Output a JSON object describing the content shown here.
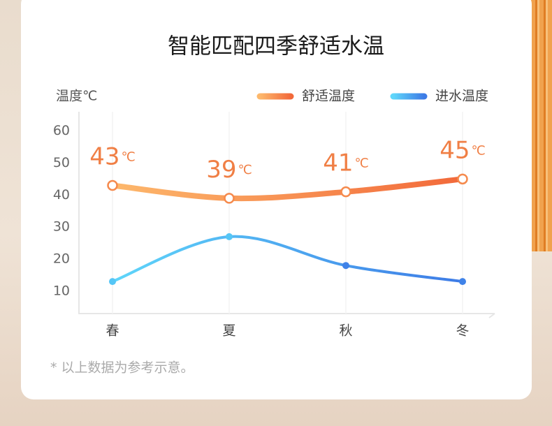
{
  "chart_data": {
    "type": "line",
    "title": "智能匹配四季舒适水温",
    "y_label": "温度℃",
    "unit_label": "℃",
    "footnote": "* 以上数据为参考示意。",
    "categories": [
      "春",
      "夏",
      "秋",
      "冬"
    ],
    "series": [
      {
        "name": "舒适温度",
        "color": [
          "#fdb86c",
          "#f2693a"
        ],
        "values": [
          43,
          39,
          41,
          45
        ]
      },
      {
        "name": "进水温度",
        "color": [
          "#5fd6fa",
          "#3d7be6"
        ],
        "values": [
          13,
          27,
          18,
          13
        ]
      }
    ],
    "ylim": [
      3,
      66
    ],
    "yticks": [
      10,
      20,
      30,
      40,
      50,
      60
    ]
  }
}
